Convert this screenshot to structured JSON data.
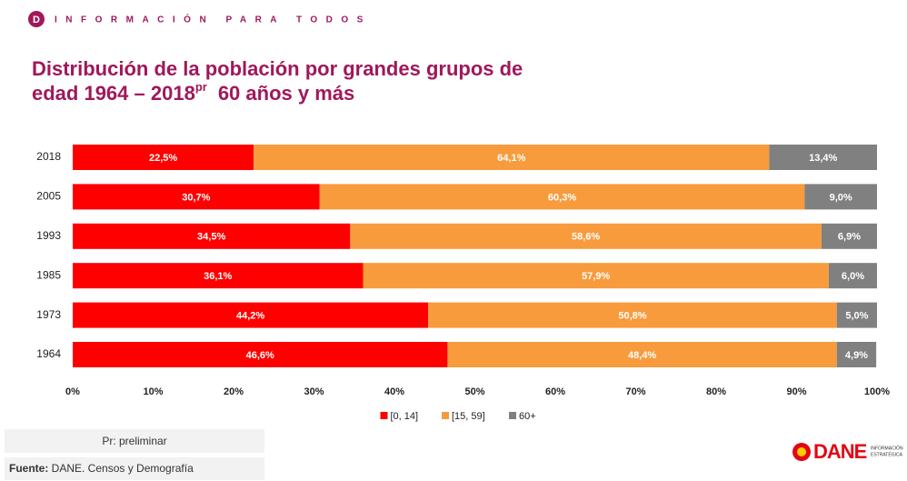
{
  "header": {
    "logo_letter": "D",
    "text": "INFORMACIÓN PARA TODOS"
  },
  "chart_data": {
    "type": "stacked-barh",
    "title": {
      "line1": "Distribución de la población por grandes grupos de",
      "line2": "edad 1964 – 2018",
      "superscript": "pr",
      "suffix": "60 años y más"
    },
    "categories": [
      "2018",
      "2005",
      "1993",
      "1985",
      "1973",
      "1964"
    ],
    "series": [
      {
        "name": "[0, 14]",
        "color": "#ff0000",
        "values": [
          22.5,
          30.7,
          34.5,
          36.1,
          44.2,
          46.6
        ],
        "value_labels": [
          "22,5%",
          "30,7%",
          "34,5%",
          "36,1%",
          "44,2%",
          "46,6%"
        ]
      },
      {
        "name": "[15, 59]",
        "color": "#f79b3c",
        "values": [
          64.1,
          60.3,
          58.6,
          57.9,
          50.8,
          48.4
        ],
        "value_labels": [
          "64,1%",
          "60,3%",
          "58,6%",
          "57,9%",
          "50,8%",
          "48,4%"
        ]
      },
      {
        "name": "60+",
        "color": "#808080",
        "values": [
          13.4,
          9.0,
          6.9,
          6.0,
          5.0,
          4.9
        ],
        "value_labels": [
          "13,4%",
          "9,0%",
          "6,9%",
          "6,0%",
          "5,0%",
          "4,9%"
        ]
      }
    ],
    "xlim": [
      0,
      100
    ],
    "xticks": [
      {
        "value": 0,
        "label": "0%"
      },
      {
        "value": 10,
        "label": "10%"
      },
      {
        "value": 20,
        "label": "20%"
      },
      {
        "value": 30,
        "label": "30%"
      },
      {
        "value": 40,
        "label": "40%"
      },
      {
        "value": 50,
        "label": "50%"
      },
      {
        "value": 60,
        "label": "60%"
      },
      {
        "value": 70,
        "label": "70%"
      },
      {
        "value": 80,
        "label": "80%"
      },
      {
        "value": 90,
        "label": "90%"
      },
      {
        "value": 100,
        "label": "100%"
      }
    ],
    "legend": "bottom"
  },
  "footer": {
    "note": "Pr: preliminar",
    "source_label": "Fuente:",
    "source": " DANE. Censos y Demografía"
  },
  "logo": {
    "name": "DANE",
    "tagline1": "INFORMACIÓN",
    "tagline2": "ESTRATÉGICA"
  }
}
